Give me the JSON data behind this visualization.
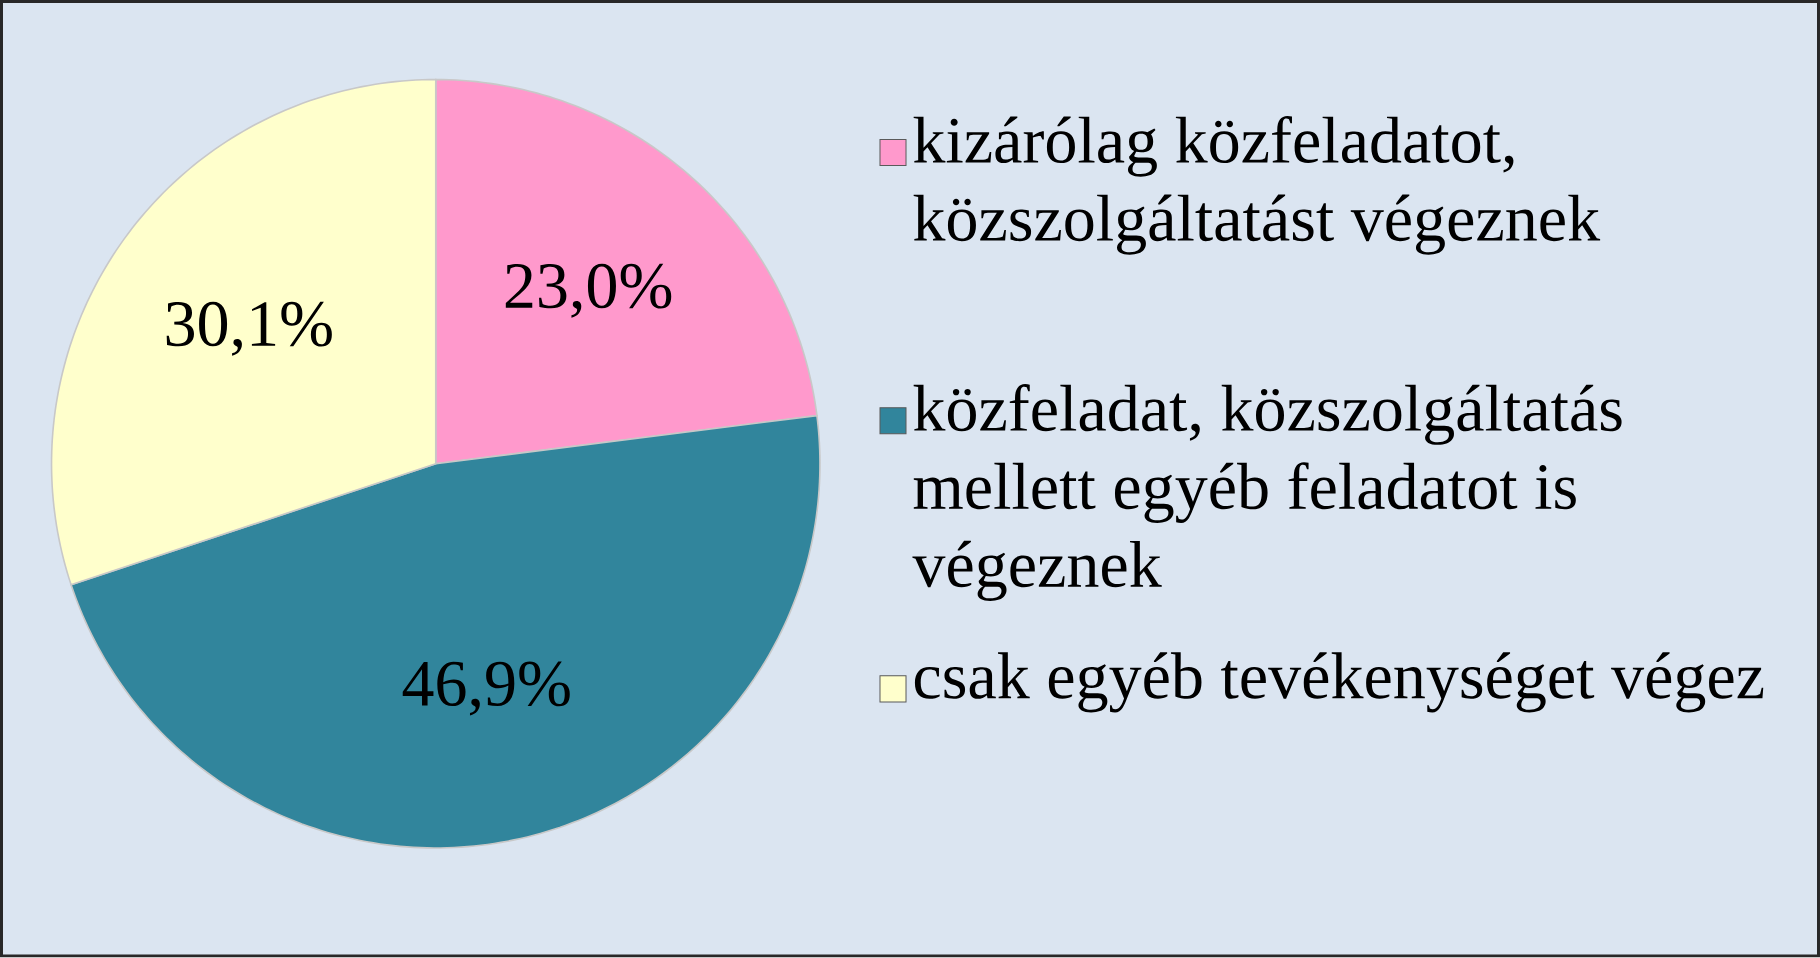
{
  "chart_data": {
    "type": "pie",
    "categories": [
      "kizárólag közfeladatot, közszolgáltatást végeznek",
      "közfeladat, közszolgáltatás mellett egyéb feladatot is végeznek",
      "csak egyéb tevékenységet végez"
    ],
    "values": [
      23.0,
      46.9,
      30.1
    ],
    "colors": [
      "#ff99cc",
      "#31859c",
      "#ffffcc"
    ],
    "value_labels": [
      "23,0%",
      "46,9%",
      "30,1%"
    ],
    "legend": "right"
  }
}
